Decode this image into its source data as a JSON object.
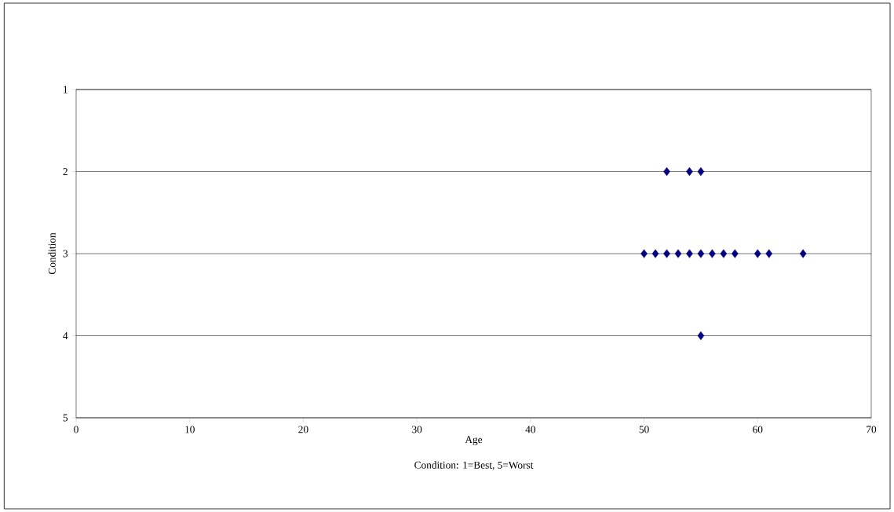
{
  "chart_data": {
    "type": "scatter",
    "xlabel": "Age",
    "ylabel": "Condition",
    "annotations": [
      "Condition: 1=Best, 5=Worst"
    ],
    "x": [
      52,
      54,
      55,
      50,
      51,
      52,
      53,
      54,
      55,
      56,
      57,
      58,
      60,
      61,
      64,
      55
    ],
    "values": [
      2,
      2,
      2,
      3,
      3,
      3,
      3,
      3,
      3,
      3,
      3,
      3,
      3,
      3,
      3,
      4
    ],
    "color": "#000080",
    "marker": "diamond",
    "xlim": [
      0,
      70
    ],
    "xticks": [
      0,
      10,
      20,
      30,
      40,
      50,
      60,
      70
    ],
    "ylim": [
      5,
      1
    ],
    "yticks": [
      1,
      2,
      3,
      4,
      5
    ],
    "grid": "y"
  }
}
